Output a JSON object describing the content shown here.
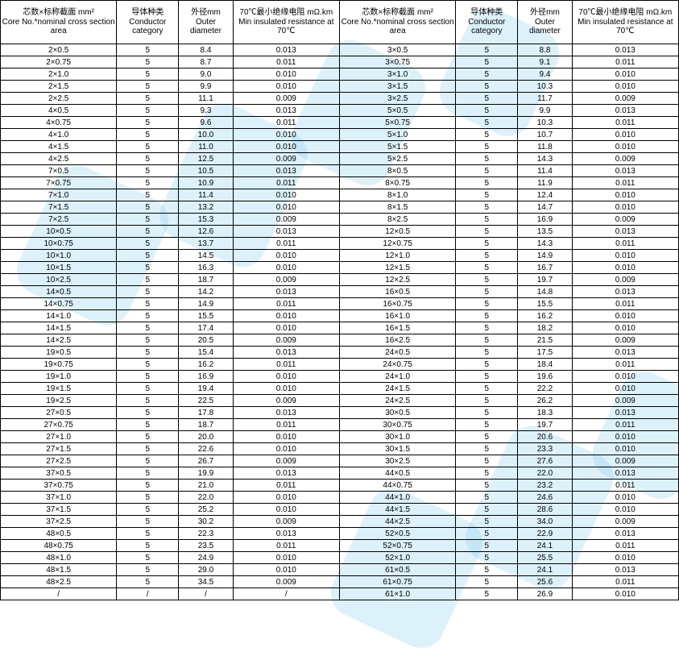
{
  "headers": {
    "core": {
      "zh": "芯数×标称截面 mm²",
      "en": "Core No.*nominal cross section area"
    },
    "conductor": {
      "zh": "导体种类",
      "en": "Conductor category"
    },
    "od": {
      "zh": "外径mm",
      "en": "Outer diameter"
    },
    "res": {
      "zh": "70℃最小绝缘电阻 mΩ.km",
      "en": "Min insulated resistance at 70℃"
    }
  },
  "left": [
    {
      "core": "2×0.5",
      "cond": "5",
      "od": "8.4",
      "res": "0.013"
    },
    {
      "core": "2×0.75",
      "cond": "5",
      "od": "8.7",
      "res": "0.011"
    },
    {
      "core": "2×1.0",
      "cond": "5",
      "od": "9.0",
      "res": "0.010"
    },
    {
      "core": "2×1.5",
      "cond": "5",
      "od": "9.9",
      "res": "0.010"
    },
    {
      "core": "2×2.5",
      "cond": "5",
      "od": "11.1",
      "res": "0.009"
    },
    {
      "core": "4×0.5",
      "cond": "5",
      "od": "9.3",
      "res": "0.013"
    },
    {
      "core": "4×0.75",
      "cond": "5",
      "od": "9.6",
      "res": "0.011"
    },
    {
      "core": "4×1.0",
      "cond": "5",
      "od": "10.0",
      "res": "0.010"
    },
    {
      "core": "4×1.5",
      "cond": "5",
      "od": "11.0",
      "res": "0.010"
    },
    {
      "core": "4×2.5",
      "cond": "5",
      "od": "12.5",
      "res": "0.009"
    },
    {
      "core": "7×0.5",
      "cond": "5",
      "od": "10.5",
      "res": "0.013"
    },
    {
      "core": "7×0.75",
      "cond": "5",
      "od": "10.9",
      "res": "0.011"
    },
    {
      "core": "7×1.0",
      "cond": "5",
      "od": "11.4",
      "res": "0.010"
    },
    {
      "core": "7×1.5",
      "cond": "5",
      "od": "13.2",
      "res": "0.010"
    },
    {
      "core": "7×2.5",
      "cond": "5",
      "od": "15.3",
      "res": "0.009"
    },
    {
      "core": "10×0.5",
      "cond": "5",
      "od": "12.6",
      "res": "0.013"
    },
    {
      "core": "10×0.75",
      "cond": "5",
      "od": "13.7",
      "res": "0.011"
    },
    {
      "core": "10×1.0",
      "cond": "5",
      "od": "14.5",
      "res": "0.010"
    },
    {
      "core": "10×1.5",
      "cond": "5",
      "od": "16.3",
      "res": "0.010"
    },
    {
      "core": "10×2.5",
      "cond": "5",
      "od": "18.7",
      "res": "0.009"
    },
    {
      "core": "14×0.5",
      "cond": "5",
      "od": "14.2",
      "res": "0.013"
    },
    {
      "core": "14×0.75",
      "cond": "5",
      "od": "14.9",
      "res": "0.011"
    },
    {
      "core": "14×1.0",
      "cond": "5",
      "od": "15.5",
      "res": "0.010"
    },
    {
      "core": "14×1.5",
      "cond": "5",
      "od": "17.4",
      "res": "0.010"
    },
    {
      "core": "14×2.5",
      "cond": "5",
      "od": "20.5",
      "res": "0.009"
    },
    {
      "core": "19×0.5",
      "cond": "5",
      "od": "15.4",
      "res": "0.013"
    },
    {
      "core": "19×0.75",
      "cond": "5",
      "od": "16.2",
      "res": "0.011"
    },
    {
      "core": "19×1.0",
      "cond": "5",
      "od": "16.9",
      "res": "0.010"
    },
    {
      "core": "19×1.5",
      "cond": "5",
      "od": "19.4",
      "res": "0.010"
    },
    {
      "core": "19×2.5",
      "cond": "5",
      "od": "22.5",
      "res": "0.009"
    },
    {
      "core": "27×0.5",
      "cond": "5",
      "od": "17.8",
      "res": "0.013"
    },
    {
      "core": "27×0.75",
      "cond": "5",
      "od": "18.7",
      "res": "0.011"
    },
    {
      "core": "27×1.0",
      "cond": "5",
      "od": "20.0",
      "res": "0.010"
    },
    {
      "core": "27×1.5",
      "cond": "5",
      "od": "22.6",
      "res": "0.010"
    },
    {
      "core": "27×2.5",
      "cond": "5",
      "od": "26.7",
      "res": "0.009"
    },
    {
      "core": "37×0.5",
      "cond": "5",
      "od": "19.9",
      "res": "0.013"
    },
    {
      "core": "37×0.75",
      "cond": "5",
      "od": "21.0",
      "res": "0.011"
    },
    {
      "core": "37×1.0",
      "cond": "5",
      "od": "22.0",
      "res": "0.010"
    },
    {
      "core": "37×1.5",
      "cond": "5",
      "od": "25.2",
      "res": "0.010"
    },
    {
      "core": "37×2.5",
      "cond": "5",
      "od": "30.2",
      "res": "0.009"
    },
    {
      "core": "48×0.5",
      "cond": "5",
      "od": "22.3",
      "res": "0.013"
    },
    {
      "core": "48×0.75",
      "cond": "5",
      "od": "23.5",
      "res": "0.011"
    },
    {
      "core": "48×1.0",
      "cond": "5",
      "od": "24.9",
      "res": "0.010"
    },
    {
      "core": "48×1.5",
      "cond": "5",
      "od": "29.0",
      "res": "0.010"
    },
    {
      "core": "48×2.5",
      "cond": "5",
      "od": "34.5",
      "res": "0.009"
    },
    {
      "core": "/",
      "cond": "/",
      "od": "/",
      "res": "/"
    }
  ],
  "right": [
    {
      "core": "3×0.5",
      "cond": "5",
      "od": "8.8",
      "res": "0.013"
    },
    {
      "core": "3×0.75",
      "cond": "5",
      "od": "9.1",
      "res": "0.011"
    },
    {
      "core": "3×1.0",
      "cond": "5",
      "od": "9.4",
      "res": "0.010"
    },
    {
      "core": "3×1.5",
      "cond": "5",
      "od": "10.3",
      "res": "0.010"
    },
    {
      "core": "3×2.5",
      "cond": "5",
      "od": "11.7",
      "res": "0.009"
    },
    {
      "core": "5×0.5",
      "cond": "5",
      "od": "9.9",
      "res": "0.013"
    },
    {
      "core": "5×0.75",
      "cond": "5",
      "od": "10.3",
      "res": "0.011"
    },
    {
      "core": "5×1.0",
      "cond": "5",
      "od": "10.7",
      "res": "0.010"
    },
    {
      "core": "5×1.5",
      "cond": "5",
      "od": "11.8",
      "res": "0.010"
    },
    {
      "core": "5×2.5",
      "cond": "5",
      "od": "14.3",
      "res": "0.009"
    },
    {
      "core": "8×0.5",
      "cond": "5",
      "od": "11.4",
      "res": "0.013"
    },
    {
      "core": "8×0.75",
      "cond": "5",
      "od": "11.9",
      "res": "0.011"
    },
    {
      "core": "8×1.0",
      "cond": "5",
      "od": "12.4",
      "res": "0.010"
    },
    {
      "core": "8×1.5",
      "cond": "5",
      "od": "14.7",
      "res": "0.010"
    },
    {
      "core": "8×2.5",
      "cond": "5",
      "od": "16.9",
      "res": "0.009"
    },
    {
      "core": "12×0.5",
      "cond": "5",
      "od": "13.5",
      "res": "0.013"
    },
    {
      "core": "12×0.75",
      "cond": "5",
      "od": "14.3",
      "res": "0.011"
    },
    {
      "core": "12×1.0",
      "cond": "5",
      "od": "14.9",
      "res": "0.010"
    },
    {
      "core": "12×1.5",
      "cond": "5",
      "od": "16.7",
      "res": "0.010"
    },
    {
      "core": "12×2.5",
      "cond": "5",
      "od": "19.7",
      "res": "0.009"
    },
    {
      "core": "16×0.5",
      "cond": "5",
      "od": "14.8",
      "res": "0.013"
    },
    {
      "core": "16×0.75",
      "cond": "5",
      "od": "15.5",
      "res": "0.011"
    },
    {
      "core": "16×1.0",
      "cond": "5",
      "od": "16.2",
      "res": "0.010"
    },
    {
      "core": "16×1.5",
      "cond": "5",
      "od": "18.2",
      "res": "0.010"
    },
    {
      "core": "16×2.5",
      "cond": "5",
      "od": "21.5",
      "res": "0.009"
    },
    {
      "core": "24×0.5",
      "cond": "5",
      "od": "17.5",
      "res": "0.013"
    },
    {
      "core": "24×0.75",
      "cond": "5",
      "od": "18.4",
      "res": "0.011"
    },
    {
      "core": "24×1.0",
      "cond": "5",
      "od": "19.6",
      "res": "0.010"
    },
    {
      "core": "24×1.5",
      "cond": "5",
      "od": "22.2",
      "res": "0.010"
    },
    {
      "core": "24×2.5",
      "cond": "5",
      "od": "26.2",
      "res": "0.009"
    },
    {
      "core": "30×0.5",
      "cond": "5",
      "od": "18.3",
      "res": "0.013"
    },
    {
      "core": "30×0.75",
      "cond": "5",
      "od": "19.7",
      "res": "0.011"
    },
    {
      "core": "30×1.0",
      "cond": "5",
      "od": "20.6",
      "res": "0.010"
    },
    {
      "core": "30×1.5",
      "cond": "5",
      "od": "23.3",
      "res": "0.010"
    },
    {
      "core": "30×2.5",
      "cond": "5",
      "od": "27.6",
      "res": "0.009"
    },
    {
      "core": "44×0.5",
      "cond": "5",
      "od": "22.0",
      "res": "0.013"
    },
    {
      "core": "44×0.75",
      "cond": "5",
      "od": "23.2",
      "res": "0.011"
    },
    {
      "core": "44×1.0",
      "cond": "5",
      "od": "24.6",
      "res": "0.010"
    },
    {
      "core": "44×1.5",
      "cond": "5",
      "od": "28.6",
      "res": "0.010"
    },
    {
      "core": "44×2.5",
      "cond": "5",
      "od": "34.0",
      "res": "0.009"
    },
    {
      "core": "52×0.5",
      "cond": "5",
      "od": "22.9",
      "res": "0.013"
    },
    {
      "core": "52×0.75",
      "cond": "5",
      "od": "24.1",
      "res": "0.011"
    },
    {
      "core": "52×1.0",
      "cond": "5",
      "od": "25.5",
      "res": "0.010"
    },
    {
      "core": "61×0.5",
      "cond": "5",
      "od": "24.1",
      "res": "0.013"
    },
    {
      "core": "61×0.75",
      "cond": "5",
      "od": "25.6",
      "res": "0.011"
    },
    {
      "core": "61×1.0",
      "cond": "5",
      "od": "26.9",
      "res": "0.010"
    }
  ]
}
